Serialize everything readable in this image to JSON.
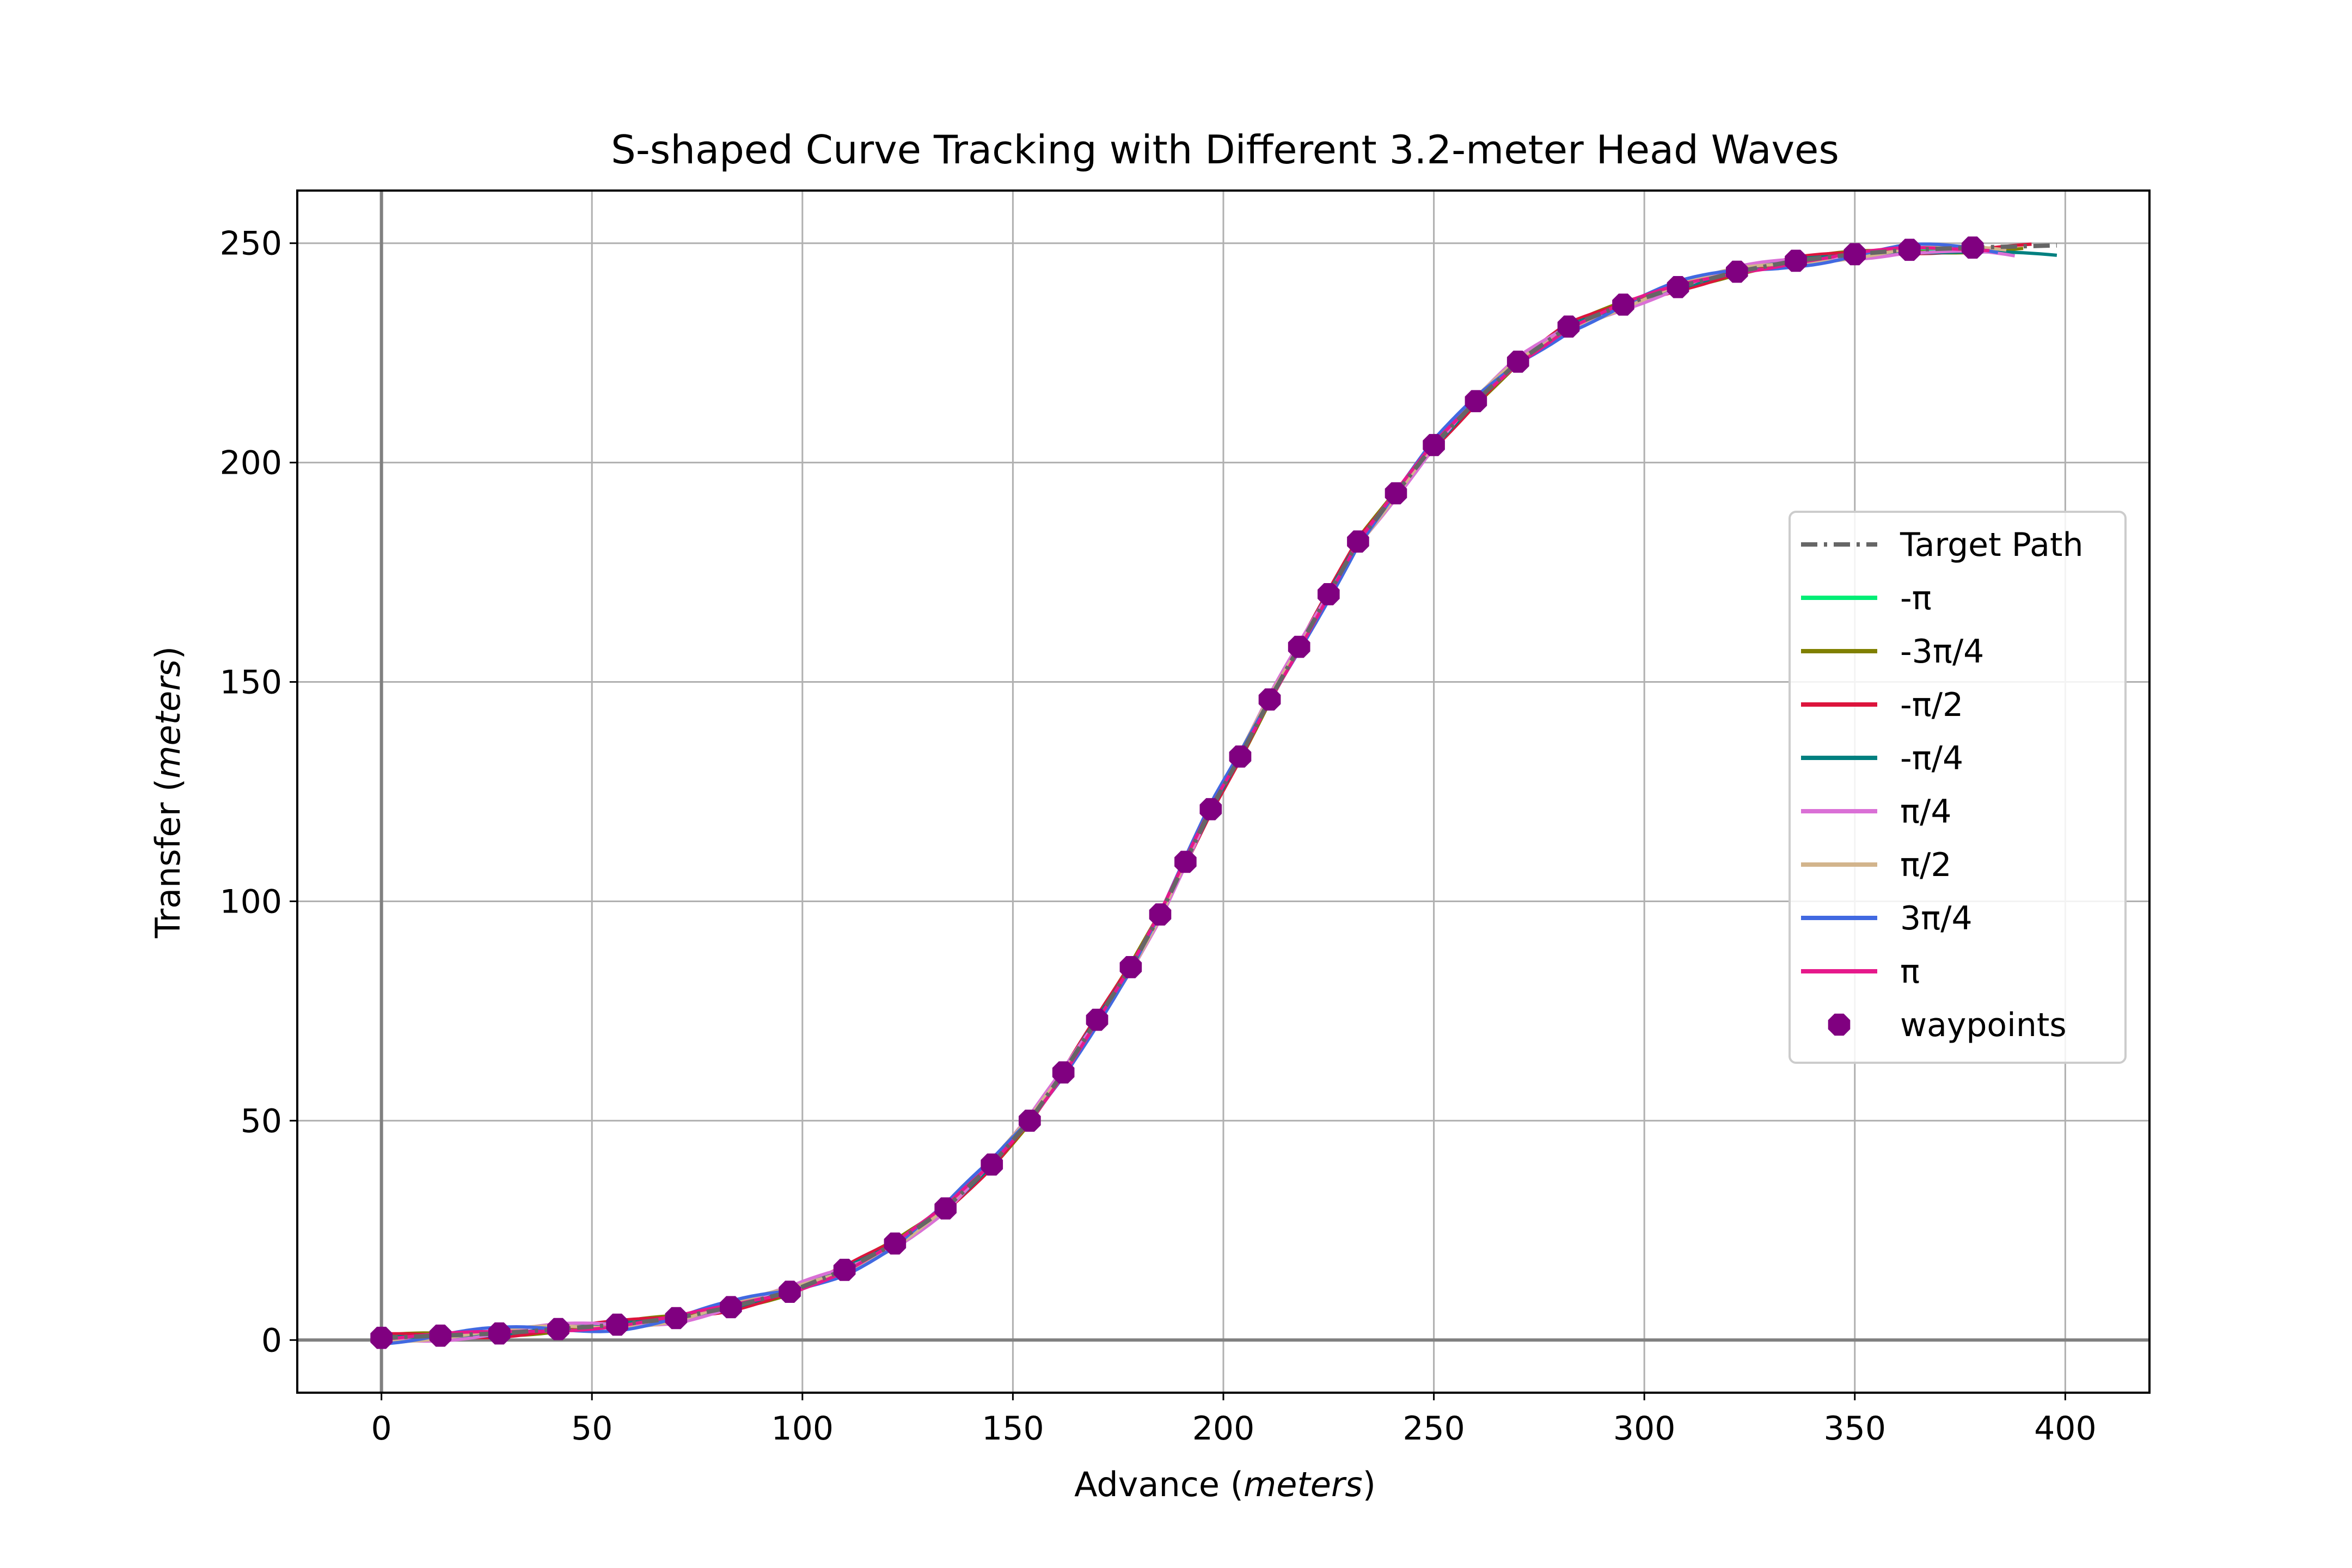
{
  "chart_data": {
    "type": "line",
    "title": "S-shaped Curve Tracking with Different 3.2-meter Head Waves",
    "xlabel_main": "Advance",
    "xlabel_unit": "meters",
    "ylabel_main": "Transfer",
    "ylabel_unit": "meters",
    "xlim": [
      -20,
      420
    ],
    "ylim": [
      -12,
      262
    ],
    "xticks": [
      0,
      50,
      100,
      150,
      200,
      250,
      300,
      350,
      400
    ],
    "yticks": [
      0,
      50,
      100,
      150,
      200,
      250
    ],
    "grid": true,
    "legend_position": "center-right",
    "target_path": {
      "name": "Target Path",
      "color": "#666666",
      "style": "dash-dot",
      "x": [
        0,
        14,
        28,
        42,
        56,
        70,
        83,
        97,
        110,
        122,
        134,
        145,
        154,
        162,
        170,
        178,
        185,
        191,
        197,
        204,
        211,
        218,
        225,
        232,
        241,
        250,
        260,
        270,
        282,
        295,
        308,
        322,
        336,
        350,
        363,
        378,
        390,
        398
      ],
      "y": [
        0.5,
        1,
        1.5,
        2.5,
        3.5,
        5,
        7.5,
        11,
        16,
        22,
        30,
        40,
        50,
        61,
        73,
        85,
        97,
        109,
        121,
        133,
        146,
        158,
        170,
        182,
        193,
        204,
        214,
        223,
        231,
        236,
        240,
        243.5,
        246,
        247.5,
        248.5,
        249,
        249.3,
        249.5
      ]
    },
    "waypoints": {
      "name": "waypoints",
      "color": "#800080",
      "x": [
        0,
        14,
        28,
        42,
        56,
        70,
        83,
        97,
        110,
        122,
        134,
        145,
        154,
        162,
        170,
        178,
        185,
        191,
        197,
        204,
        211,
        218,
        225,
        232,
        241,
        250,
        260,
        270,
        282,
        295,
        308,
        322,
        336,
        350,
        363,
        378
      ],
      "y": [
        0.5,
        1,
        1.5,
        2.5,
        3.5,
        5,
        7.5,
        11,
        16,
        22,
        30,
        40,
        50,
        61,
        73,
        85,
        97,
        109,
        121,
        133,
        146,
        158,
        170,
        182,
        193,
        204,
        214,
        223,
        231,
        236,
        240,
        243.5,
        246,
        247.5,
        248.5,
        249
      ]
    },
    "series": [
      {
        "name": "-π",
        "color": "#00ee76",
        "x_end": 388,
        "wobble": 0.4,
        "end_dip": 0.5
      },
      {
        "name": "-3π/4",
        "color": "#808000",
        "x_end": 390,
        "wobble": 0.8,
        "end_dip": 0.6
      },
      {
        "name": "-π/2",
        "color": "#dc143c",
        "x_end": 392,
        "wobble": 0.9,
        "end_dip": 0.4
      },
      {
        "name": "-π/4",
        "color": "#008080",
        "x_end": 398,
        "wobble": 0.5,
        "end_dip": 2.5
      },
      {
        "name": "π/4",
        "color": "#da70d6",
        "x_end": 388,
        "wobble": 1.2,
        "end_dip": 3.0
      },
      {
        "name": "π/2",
        "color": "#d2b48c",
        "x_end": 386,
        "wobble": 1.0,
        "end_dip": 1.0
      },
      {
        "name": "3π/4",
        "color": "#4169e1",
        "x_end": 384,
        "wobble": 1.4,
        "end_dip": 0.8
      },
      {
        "name": "π",
        "color": "#e6198b",
        "x_end": 382,
        "wobble": 0.6,
        "end_dip": 0.3
      }
    ]
  }
}
